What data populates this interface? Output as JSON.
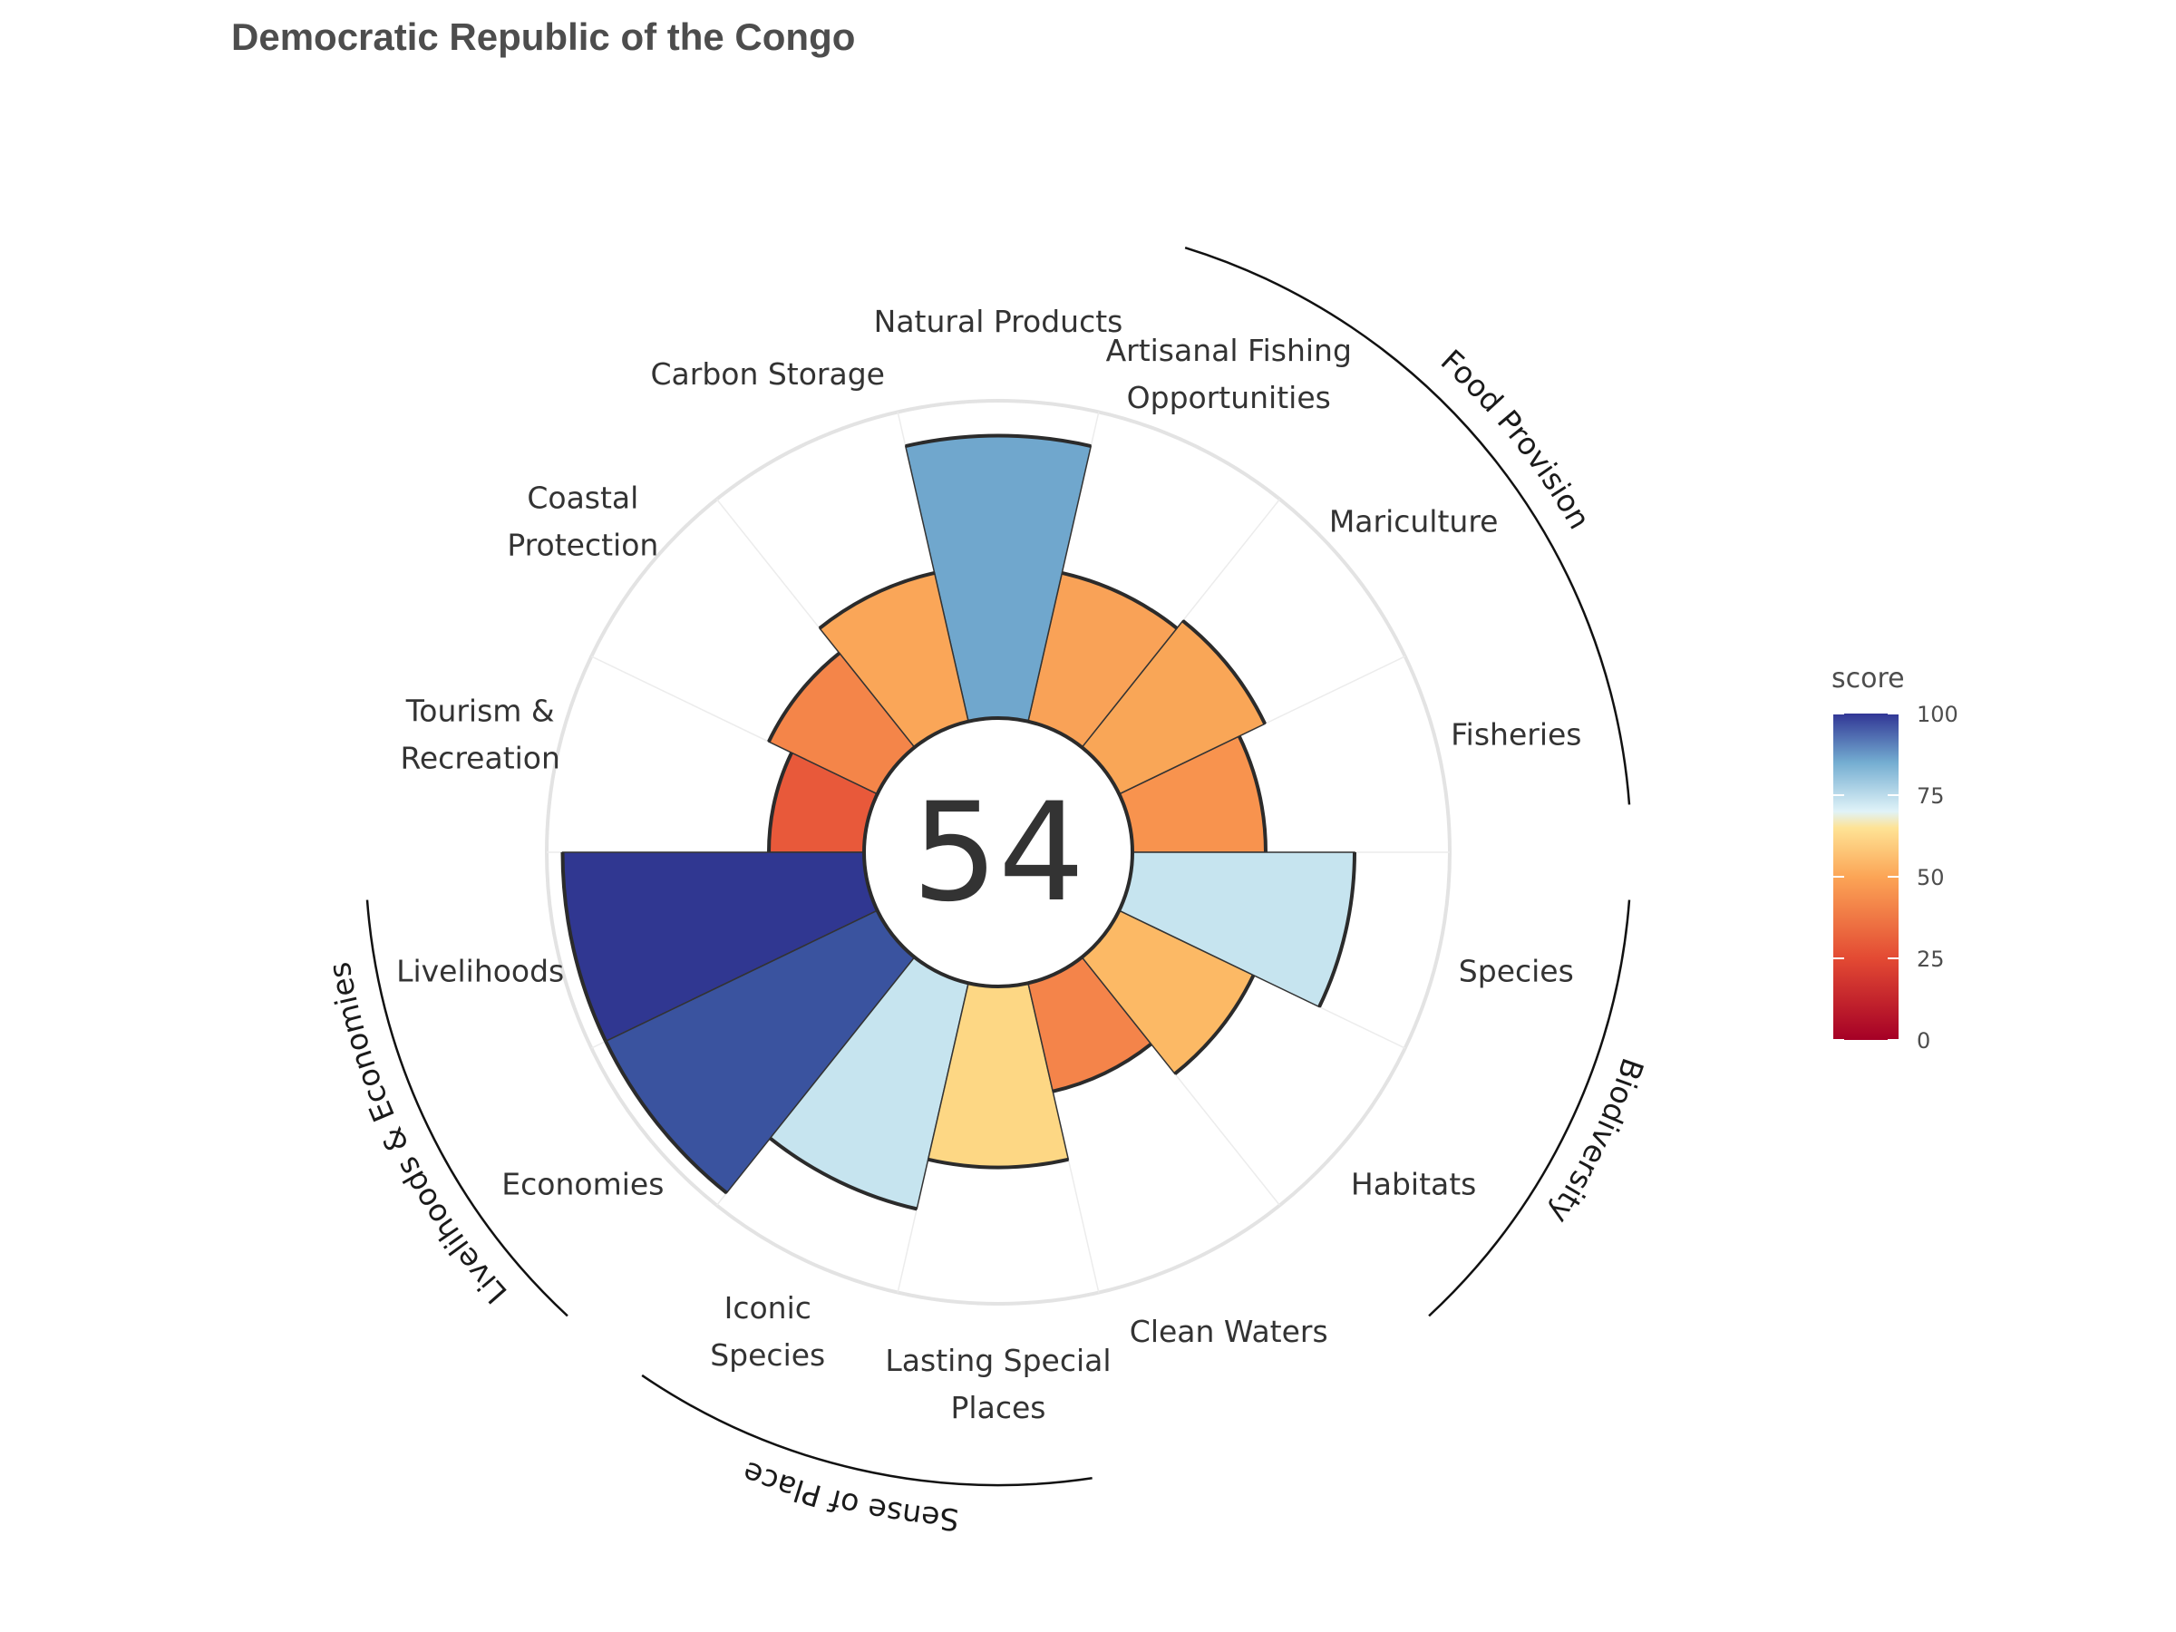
{
  "chart_data": {
    "type": "polar-bar",
    "title": "Democratic Republic of the Congo",
    "center_value": "54",
    "ylim": [
      0,
      100
    ],
    "goals": [
      {
        "label": "Fisheries",
        "value": 42,
        "color": "#f8934e"
      },
      {
        "label": "Mariculture",
        "value": 51,
        "color": "#f9a657"
      },
      {
        "label": "Artisanal Fishing Opportunities",
        "value": 48,
        "color": "#f9a257"
      },
      {
        "label": "Natural Products",
        "value": 89,
        "color": "#70a7cd"
      },
      {
        "label": "Carbon Storage",
        "value": 48,
        "color": "#faa658"
      },
      {
        "label": "Coastal Protection",
        "value": 38,
        "color": "#f48549"
      },
      {
        "label": "Tourism & Recreation",
        "value": 30,
        "color": "#e8593a"
      },
      {
        "label": "Livelihoods",
        "value": 95,
        "color": "#303791"
      },
      {
        "label": "Economies",
        "value": 95,
        "color": "#3a539f"
      },
      {
        "label": "Iconic Species",
        "value": 73,
        "color": "#c6e4ef"
      },
      {
        "label": "Lasting Special Places",
        "value": 57,
        "color": "#fdd784"
      },
      {
        "label": "Clean Waters",
        "value": 35,
        "color": "#f4844a"
      },
      {
        "label": "Habitats",
        "value": 47,
        "color": "#fcb965"
      },
      {
        "label": "Species",
        "value": 70,
        "color": "#c6e4ef"
      }
    ],
    "label_lines": [
      [
        "Fisheries"
      ],
      [
        "Mariculture"
      ],
      [
        "Artisanal Fishing",
        "Opportunities"
      ],
      [
        "Natural Products"
      ],
      [
        "Carbon Storage"
      ],
      [
        "Coastal",
        "Protection"
      ],
      [
        "Tourism &",
        "Recreation"
      ],
      [
        "Livelihoods"
      ],
      [
        "Economies"
      ],
      [
        "Iconic",
        "Species"
      ],
      [
        "Lasting Special",
        "Places"
      ],
      [
        "Clean Waters"
      ],
      [
        "Habitats"
      ],
      [
        "Species"
      ]
    ],
    "groups": [
      {
        "label": "Food Provision",
        "first": 0,
        "last": 2
      },
      {
        "label": "Biodiversity",
        "first": 12,
        "last": 13
      },
      {
        "label": "Sense of Place",
        "first": 9,
        "last": 10
      },
      {
        "label": "Livelihoods & Economies",
        "first": 7,
        "last": 8
      }
    ],
    "legend": {
      "title": "score",
      "ticks": [
        "100",
        "75",
        "50",
        "25",
        "0"
      ],
      "tick_values": [
        100,
        75,
        50,
        25,
        0
      ],
      "stops": [
        {
          "v": 0,
          "c": "#a50026"
        },
        {
          "v": 25,
          "c": "#e34a33"
        },
        {
          "v": 50,
          "c": "#fca556"
        },
        {
          "v": 65,
          "c": "#fee395"
        },
        {
          "v": 70,
          "c": "#e0f3f8"
        },
        {
          "v": 85,
          "c": "#74add1"
        },
        {
          "v": 100,
          "c": "#313695"
        }
      ]
    }
  }
}
